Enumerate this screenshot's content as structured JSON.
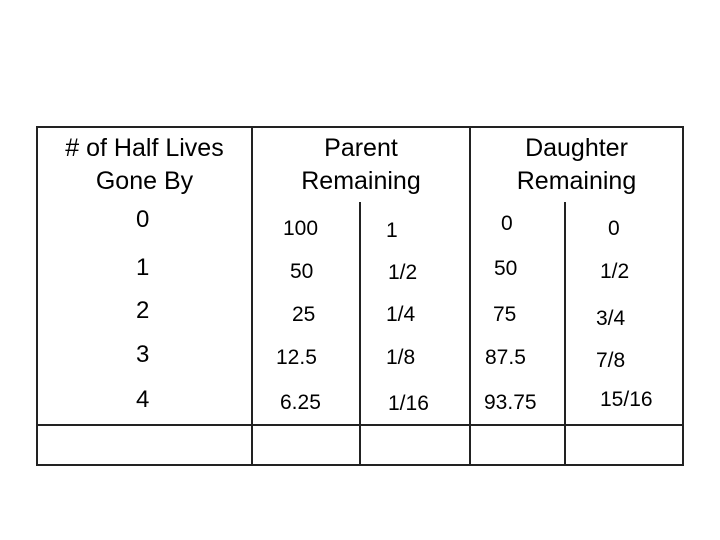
{
  "table": {
    "headers": {
      "half_lives": [
        "# of Half Lives",
        "Gone By"
      ],
      "parent": [
        "Parent",
        "Remaining"
      ],
      "daughter": [
        "Daughter",
        "Remaining"
      ]
    },
    "rows": [
      {
        "n": "0",
        "parent_pct": "100",
        "parent_frac": "1",
        "daughter_pct": "0",
        "daughter_frac": "0"
      },
      {
        "n": "1",
        "parent_pct": "50",
        "parent_frac": "1/2",
        "daughter_pct": "50",
        "daughter_frac": "1/2"
      },
      {
        "n": "2",
        "parent_pct": "25",
        "parent_frac": "1/4",
        "daughter_pct": "75",
        "daughter_frac": "3/4"
      },
      {
        "n": "3",
        "parent_pct": "12.5",
        "parent_frac": "1/8",
        "daughter_pct": "87.5",
        "daughter_frac": "7/8"
      },
      {
        "n": "4",
        "parent_pct": "6.25",
        "parent_frac": "1/16",
        "daughter_pct": "93.75",
        "daughter_frac": "15/16"
      }
    ]
  }
}
